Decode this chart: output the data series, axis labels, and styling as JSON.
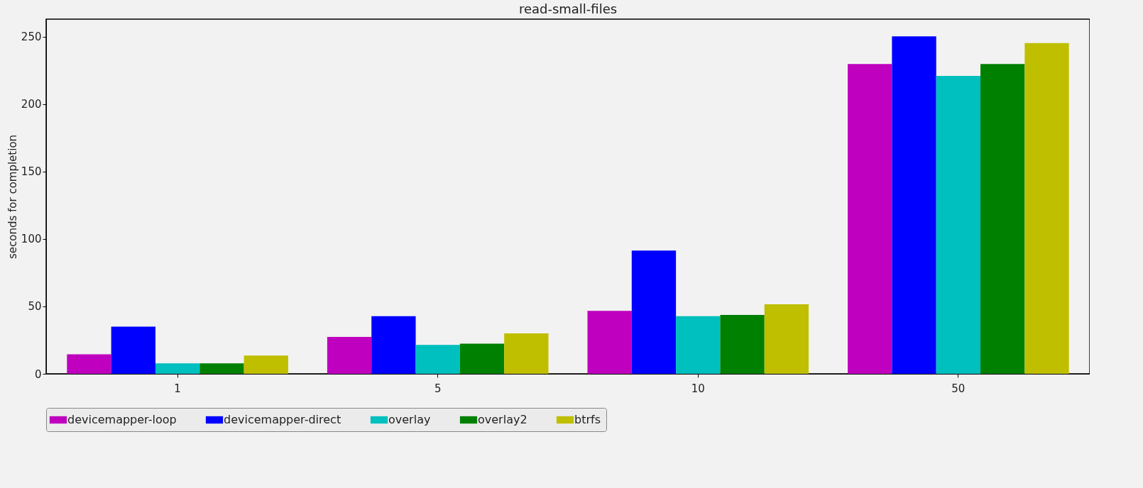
{
  "chart_data": {
    "type": "bar",
    "title": "read-small-files",
    "ylabel": "seconds for completion",
    "categories": [
      "1",
      "5",
      "10",
      "50"
    ],
    "series": [
      {
        "name": "devicemapper-loop",
        "color": "#bf00bf",
        "values": [
          14.5,
          27.3,
          46.7,
          229.7
        ]
      },
      {
        "name": "devicemapper-direct",
        "color": "#0000ff",
        "values": [
          35,
          42.7,
          91.4,
          250.2
        ]
      },
      {
        "name": "overlay",
        "color": "#00bfbf",
        "values": [
          7.8,
          21.4,
          42.7,
          220.9
        ]
      },
      {
        "name": "overlay2",
        "color": "#008000",
        "values": [
          7.8,
          22.4,
          43.6,
          229.7
        ]
      },
      {
        "name": "btrfs",
        "color": "#bfbf00",
        "values": [
          13.6,
          30,
          51.6,
          245.3
        ]
      }
    ],
    "ylim": [
      0,
      263
    ],
    "yticks": [
      0,
      50,
      100,
      150,
      200,
      250
    ],
    "grid": false,
    "legend": "bottom"
  }
}
